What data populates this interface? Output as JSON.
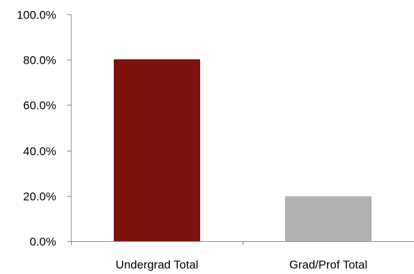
{
  "chart_data": {
    "type": "bar",
    "title": "",
    "xlabel": "",
    "ylabel": "",
    "categories": [
      "Undergrad Total",
      "Grad/Prof Total"
    ],
    "values": [
      80.2,
      19.8
    ],
    "ylim": [
      0,
      100
    ],
    "yticks": [
      0,
      20,
      40,
      60,
      80,
      100
    ],
    "ytick_labels": [
      "0.0%",
      "20.0%",
      "40.0%",
      "60.0%",
      "80.0%",
      "100.0%"
    ],
    "grid": false,
    "legend": "none",
    "colors": [
      "#7d120e",
      "#b2b2b2"
    ]
  }
}
